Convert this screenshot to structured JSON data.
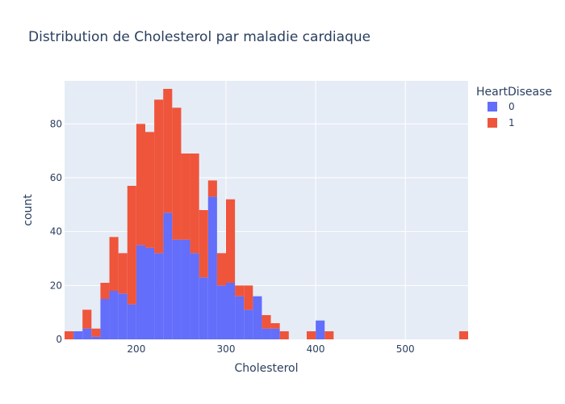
{
  "chart_data": {
    "type": "bar",
    "stacked": true,
    "title": "Distribution de Cholesterol par maladie cardiaque",
    "xlabel": "Cholesterol",
    "ylabel": "count",
    "xlim": [
      120,
      570
    ],
    "ylim": [
      0,
      96
    ],
    "x_ticks": [
      200,
      300,
      400,
      500
    ],
    "y_ticks": [
      0,
      20,
      40,
      60,
      80
    ],
    "grid": true,
    "legend": {
      "title": "HeartDisease",
      "placement": "top-right"
    },
    "bin_width": 10,
    "bin_starts": [
      120,
      130,
      140,
      150,
      160,
      170,
      180,
      190,
      200,
      210,
      220,
      230,
      240,
      250,
      260,
      270,
      280,
      290,
      300,
      310,
      320,
      330,
      340,
      350,
      360,
      370,
      380,
      390,
      400,
      410,
      420,
      430,
      440,
      450,
      460,
      470,
      480,
      490,
      500,
      510,
      520,
      530,
      540,
      550,
      560
    ],
    "series": [
      {
        "name": "0",
        "color": "#636efa",
        "values": [
          0,
          3,
          4,
          1,
          15,
          18,
          17,
          13,
          35,
          34,
          32,
          47,
          37,
          37,
          32,
          23,
          53,
          20,
          21,
          16,
          11,
          16,
          4,
          4,
          0,
          0,
          0,
          0,
          7,
          0,
          0,
          0,
          0,
          0,
          0,
          0,
          0,
          0,
          0,
          0,
          0,
          0,
          0,
          0,
          0
        ]
      },
      {
        "name": "1",
        "color": "#ef553b",
        "values": [
          3,
          0,
          7,
          3,
          6,
          20,
          15,
          44,
          45,
          43,
          57,
          46,
          49,
          32,
          37,
          25,
          6,
          12,
          31,
          4,
          9,
          0,
          5,
          2,
          3,
          0,
          0,
          3,
          0,
          3,
          0,
          0,
          0,
          0,
          0,
          0,
          0,
          0,
          0,
          0,
          0,
          0,
          0,
          0,
          3
        ]
      }
    ]
  }
}
